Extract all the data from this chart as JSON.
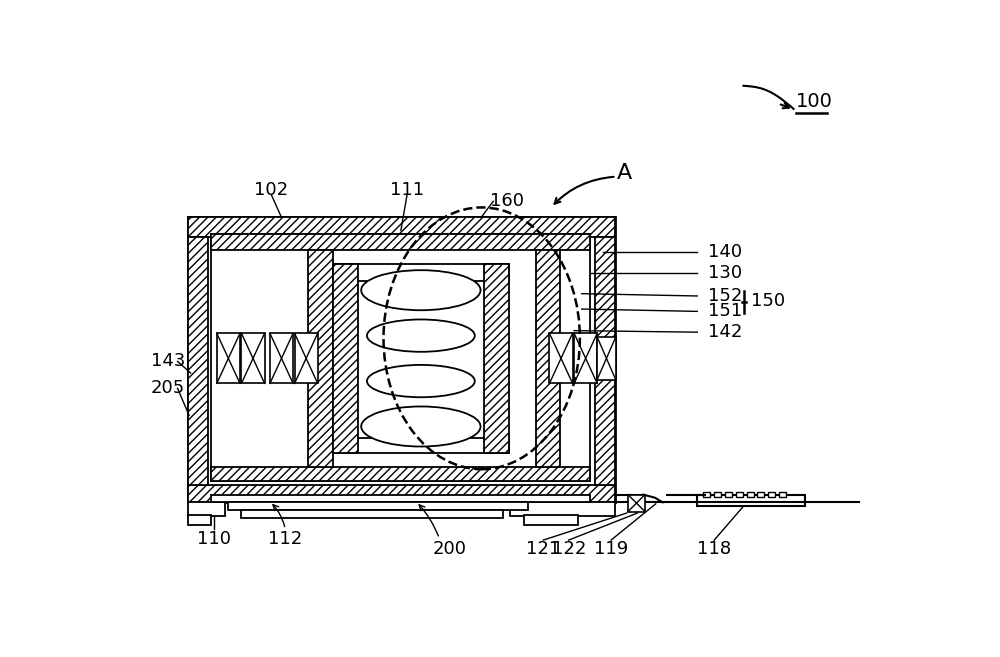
{
  "bg_color": "#ffffff",
  "lc": "#000000",
  "fig_w": 10.0,
  "fig_h": 6.57,
  "dpi": 100
}
